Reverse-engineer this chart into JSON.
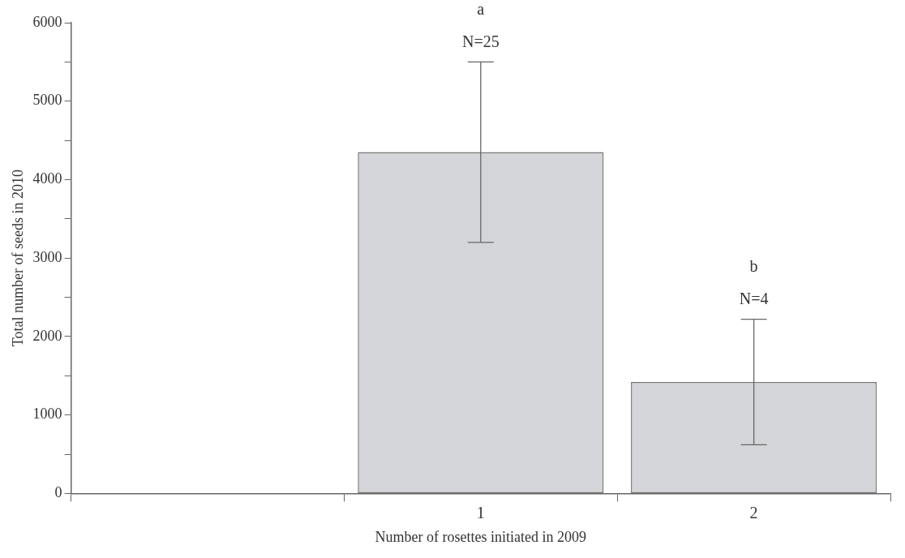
{
  "chart_data": {
    "type": "bar",
    "xlabel": "Number of rosettes initiated in 2009",
    "ylabel": "Total number of seeds in 2010",
    "categories": [
      null,
      "1",
      "2"
    ],
    "values": [
      null,
      4350,
      1420
    ],
    "errors": [
      null,
      1150,
      800
    ],
    "color": "#d4d5d8",
    "ylim": [
      0,
      6000
    ],
    "yticks": [
      0,
      {
        "value": 500,
        "label": null
      },
      1000,
      {
        "value": 1500,
        "label": null
      },
      2000,
      {
        "value": 2500,
        "label": null
      },
      3000,
      {
        "value": 3500,
        "label": null
      },
      4000,
      {
        "value": 4500,
        "label": null
      },
      5000,
      {
        "value": 5500,
        "label": null
      },
      6000
    ],
    "annotations": [
      "a",
      "N=25",
      "b",
      "N=4"
    ],
    "grid": false,
    "legend": false
  }
}
